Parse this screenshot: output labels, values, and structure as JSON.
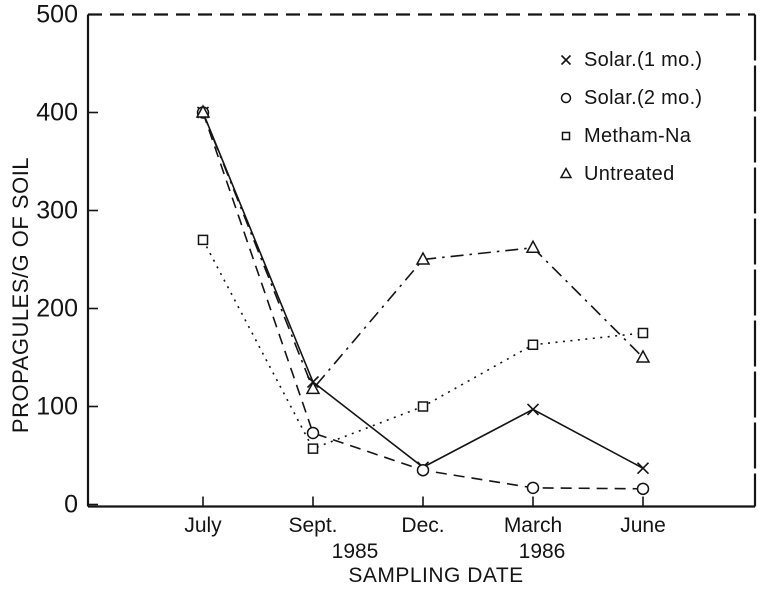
{
  "figure": {
    "background_color": "#ffffff",
    "ink_color": "#141414"
  },
  "chart_data": {
    "type": "line",
    "title": "",
    "xlabel": "SAMPLING DATE",
    "ylabel": "PROPAGULES/G OF SOIL",
    "categories": [
      "July",
      "Sept.",
      "Dec.",
      "March",
      "June"
    ],
    "category_sublabels": [
      "",
      "1985",
      "",
      "1986",
      ""
    ],
    "y_ticks": [
      0,
      100,
      200,
      300,
      400,
      500
    ],
    "ylim": [
      0,
      500
    ],
    "grid": false,
    "legend_position": "top-right-inside",
    "series": [
      {
        "name": "Solar.(1 mo.)",
        "marker": "x",
        "line": "solid",
        "values": [
          400,
          125,
          38,
          97,
          37
        ]
      },
      {
        "name": "Solar.(2 mo.)",
        "marker": "circle",
        "line": "dashed",
        "values": [
          400,
          73,
          35,
          17,
          16
        ]
      },
      {
        "name": "Metham-Na",
        "marker": "square",
        "line": "dotted",
        "values": [
          270,
          57,
          100,
          163,
          175
        ]
      },
      {
        "name": "Untreated",
        "marker": "triangle",
        "line": "dashdot",
        "values": [
          400,
          118,
          250,
          262,
          150
        ]
      }
    ]
  }
}
